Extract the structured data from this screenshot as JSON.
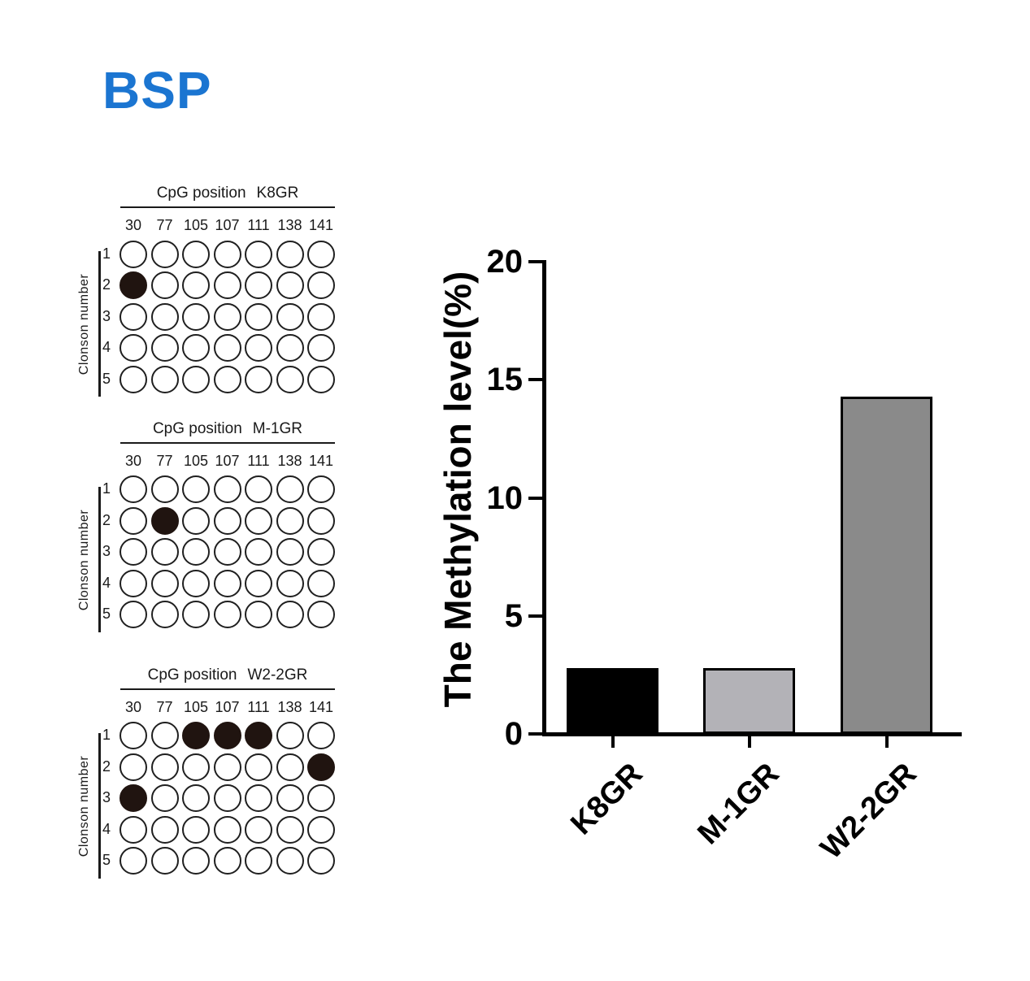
{
  "figure_title": "BSP",
  "colors": {
    "title_blue": "#1b75d1",
    "dot_fill": "#201410",
    "axis_black": "#000000"
  },
  "dot_plots": [
    {
      "title_prefix": "CpG position",
      "sample": "K8GR",
      "columns": [
        "30",
        "77",
        "105",
        "107",
        "111",
        "138",
        "141"
      ],
      "rows": [
        "1",
        "2",
        "3",
        "4",
        "5"
      ],
      "y_axis_label": "Clonson number",
      "filled_cells": [
        [
          1,
          0
        ]
      ]
    },
    {
      "title_prefix": "CpG position",
      "sample": "M-1GR",
      "columns": [
        "30",
        "77",
        "105",
        "107",
        "111",
        "138",
        "141"
      ],
      "rows": [
        "1",
        "2",
        "3",
        "4",
        "5"
      ],
      "y_axis_label": "Clonson number",
      "filled_cells": [
        [
          1,
          1
        ]
      ]
    },
    {
      "title_prefix": "CpG position",
      "sample": "W2-2GR",
      "columns": [
        "30",
        "77",
        "105",
        "107",
        "111",
        "138",
        "141"
      ],
      "rows": [
        "1",
        "2",
        "3",
        "4",
        "5"
      ],
      "y_axis_label": "Clonson number",
      "filled_cells": [
        [
          0,
          2
        ],
        [
          0,
          3
        ],
        [
          0,
          4
        ],
        [
          1,
          6
        ],
        [
          2,
          0
        ]
      ]
    }
  ],
  "chart_data": {
    "type": "bar",
    "categories": [
      "K8GR",
      "M-1GR",
      "W2-2GR"
    ],
    "values": [
      2.8,
      2.8,
      14.3
    ],
    "bar_colors": [
      "#000000",
      "#b3b2b7",
      "#8a8a8a"
    ],
    "title": "",
    "xlabel": "",
    "ylabel": "The Methylation level(%)",
    "yticks": [
      0,
      5,
      10,
      15,
      20
    ],
    "ylim": [
      0,
      20
    ],
    "grid": false,
    "legend": false
  }
}
